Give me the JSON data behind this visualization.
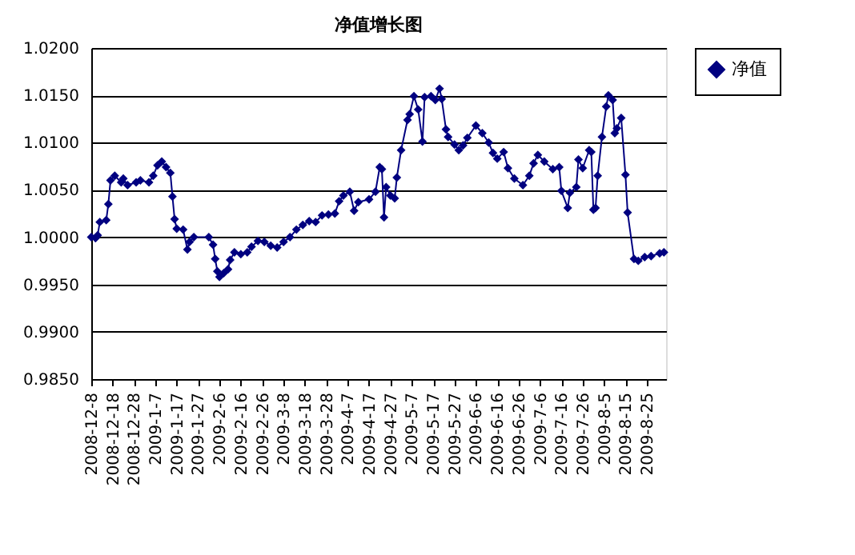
{
  "chart_data": {
    "type": "line",
    "title": "净值增长图",
    "x": [
      "2008-12-08",
      "2008-12-10",
      "2008-12-11",
      "2008-12-12",
      "2008-12-15",
      "2008-12-16",
      "2008-12-17",
      "2008-12-19",
      "2008-12-22",
      "2008-12-23",
      "2008-12-25",
      "2008-12-29",
      "2008-12-31",
      "2009-01-04",
      "2009-01-06",
      "2009-01-08",
      "2009-01-10",
      "2009-01-12",
      "2009-01-14",
      "2009-01-15",
      "2009-01-16",
      "2009-01-17",
      "2009-01-20",
      "2009-01-22",
      "2009-01-23",
      "2009-01-25",
      "2009-02-01",
      "2009-02-03",
      "2009-02-04",
      "2009-02-05",
      "2009-02-06",
      "2009-02-08",
      "2009-02-10",
      "2009-02-11",
      "2009-02-13",
      "2009-02-16",
      "2009-02-19",
      "2009-02-21",
      "2009-02-24",
      "2009-02-27",
      "2009-03-02",
      "2009-03-05",
      "2009-03-08",
      "2009-03-11",
      "2009-03-14",
      "2009-03-17",
      "2009-03-20",
      "2009-03-23",
      "2009-03-26",
      "2009-03-29",
      "2009-04-01",
      "2009-04-03",
      "2009-04-05",
      "2009-04-08",
      "2009-04-10",
      "2009-04-12",
      "2009-04-17",
      "2009-04-20",
      "2009-04-22",
      "2009-04-23",
      "2009-04-24",
      "2009-04-25",
      "2009-04-27",
      "2009-04-29",
      "2009-04-30",
      "2009-05-02",
      "2009-05-05",
      "2009-05-06",
      "2009-05-08",
      "2009-05-10",
      "2009-05-12",
      "2009-05-13",
      "2009-05-16",
      "2009-05-18",
      "2009-05-20",
      "2009-05-21",
      "2009-05-23",
      "2009-05-24",
      "2009-05-27",
      "2009-05-29",
      "2009-05-31",
      "2009-06-02",
      "2009-06-06",
      "2009-06-09",
      "2009-06-12",
      "2009-06-14",
      "2009-06-16",
      "2009-06-19",
      "2009-06-21",
      "2009-06-24",
      "2009-06-28",
      "2009-07-01",
      "2009-07-03",
      "2009-07-05",
      "2009-07-08",
      "2009-07-12",
      "2009-07-15",
      "2009-07-16",
      "2009-07-19",
      "2009-07-20",
      "2009-07-23",
      "2009-07-24",
      "2009-07-26",
      "2009-07-29",
      "2009-07-30",
      "2009-07-31",
      "2009-08-01",
      "2009-08-02",
      "2009-08-04",
      "2009-08-06",
      "2009-08-07",
      "2009-08-09",
      "2009-08-10",
      "2009-08-11",
      "2009-08-13",
      "2009-08-15",
      "2009-08-16",
      "2009-08-19",
      "2009-08-21",
      "2009-08-24",
      "2009-08-27",
      "2009-08-31",
      "2009-09-02"
    ],
    "series": [
      {
        "name": "净值",
        "color": "#000080",
        "values": [
          1.0,
          0.9999,
          1.0002,
          1.0016,
          1.0018,
          1.0035,
          1.006,
          1.0065,
          1.0058,
          1.0062,
          1.0055,
          1.0058,
          1.006,
          1.0058,
          1.0065,
          1.0076,
          1.008,
          1.0074,
          1.0068,
          1.0043,
          1.0019,
          1.0009,
          1.0008,
          0.9987,
          0.9995,
          1.0,
          1.0,
          0.9992,
          0.9977,
          0.9964,
          0.9958,
          0.9962,
          0.9966,
          0.9976,
          0.9984,
          0.9982,
          0.9984,
          0.999,
          0.9996,
          0.9995,
          0.9991,
          0.9989,
          0.9995,
          1.0,
          1.0008,
          1.0013,
          1.0017,
          1.0016,
          1.0023,
          1.0024,
          1.0025,
          1.0038,
          1.0044,
          1.0048,
          1.0028,
          1.0037,
          1.004,
          1.0048,
          1.0074,
          1.0072,
          1.0021,
          1.0053,
          1.0044,
          1.0041,
          1.0063,
          1.0092,
          1.0124,
          1.013,
          1.0149,
          1.0135,
          1.0101,
          1.0148,
          1.0149,
          1.0145,
          1.0157,
          1.0146,
          1.0114,
          1.0106,
          1.0098,
          1.0092,
          1.0097,
          1.0105,
          1.0118,
          1.011,
          1.01,
          1.0089,
          1.0083,
          1.009,
          1.0073,
          1.0062,
          1.0055,
          1.0065,
          1.0078,
          1.0087,
          1.008,
          1.0072,
          1.0074,
          1.0049,
          1.0031,
          1.0047,
          1.0053,
          1.0082,
          1.0073,
          1.0092,
          1.009,
          1.0029,
          1.0031,
          1.0065,
          1.0106,
          1.0138,
          1.015,
          1.0145,
          1.011,
          1.0115,
          1.0126,
          1.0066,
          1.0026,
          0.9977,
          0.9975,
          0.9979,
          0.998,
          0.9983,
          0.9984
        ]
      }
    ],
    "xlim": [
      "2008-12-08",
      "2009-09-03"
    ],
    "xticks": [
      {
        "value": "2008-12-08",
        "label": "2008-12-8"
      },
      {
        "value": "2008-12-18",
        "label": "2008-12-18"
      },
      {
        "value": "2008-12-28",
        "label": "2008-12-28"
      },
      {
        "value": "2009-01-07",
        "label": "2009-1-7"
      },
      {
        "value": "2009-01-17",
        "label": "2009-1-17"
      },
      {
        "value": "2009-01-27",
        "label": "2009-1-27"
      },
      {
        "value": "2009-02-06",
        "label": "2009-2-6"
      },
      {
        "value": "2009-02-16",
        "label": "2009-2-16"
      },
      {
        "value": "2009-02-26",
        "label": "2009-2-26"
      },
      {
        "value": "2009-03-08",
        "label": "2009-3-8"
      },
      {
        "value": "2009-03-18",
        "label": "2009-3-18"
      },
      {
        "value": "2009-03-28",
        "label": "2009-3-28"
      },
      {
        "value": "2009-04-07",
        "label": "2009-4-7"
      },
      {
        "value": "2009-04-17",
        "label": "2009-4-17"
      },
      {
        "value": "2009-04-27",
        "label": "2009-4-27"
      },
      {
        "value": "2009-05-07",
        "label": "2009-5-7"
      },
      {
        "value": "2009-05-17",
        "label": "2009-5-17"
      },
      {
        "value": "2009-05-27",
        "label": "2009-5-27"
      },
      {
        "value": "2009-06-06",
        "label": "2009-6-6"
      },
      {
        "value": "2009-06-16",
        "label": "2009-6-16"
      },
      {
        "value": "2009-06-26",
        "label": "2009-6-26"
      },
      {
        "value": "2009-07-06",
        "label": "2009-7-6"
      },
      {
        "value": "2009-07-16",
        "label": "2009-7-16"
      },
      {
        "value": "2009-07-26",
        "label": "2009-7-26"
      },
      {
        "value": "2009-08-05",
        "label": "2009-8-5"
      },
      {
        "value": "2009-08-15",
        "label": "2009-8-15"
      },
      {
        "value": "2009-08-25",
        "label": "2009-8-25"
      }
    ],
    "ylim": [
      0.985,
      1.02
    ],
    "yticks": [
      {
        "value": 0.985,
        "label": "0.9850"
      },
      {
        "value": 0.99,
        "label": "0.9900"
      },
      {
        "value": 0.995,
        "label": "0.9950"
      },
      {
        "value": 1.0,
        "label": "1.0000"
      },
      {
        "value": 1.005,
        "label": "1.0050"
      },
      {
        "value": 1.01,
        "label": "1.0100"
      },
      {
        "value": 1.015,
        "label": "1.0150"
      },
      {
        "value": 1.02,
        "label": "1.0200"
      }
    ],
    "grid": "y",
    "legend": "right",
    "marker": "diamond",
    "line_style": "solid"
  }
}
